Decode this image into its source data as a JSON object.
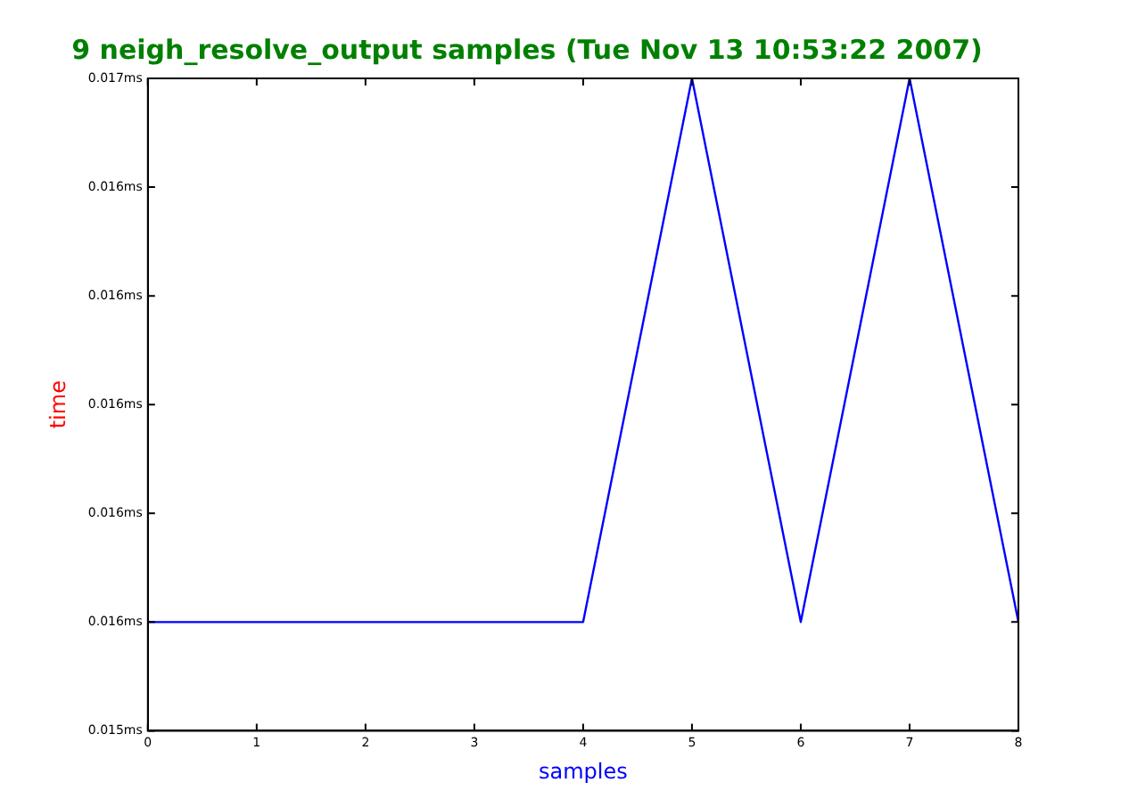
{
  "chart_data": {
    "type": "line",
    "title": "9 neigh_resolve_output samples (Tue Nov 13 10:53:22 2007)",
    "xlabel": "samples",
    "ylabel": "time",
    "x": [
      0,
      1,
      2,
      3,
      4,
      5,
      6,
      7,
      8
    ],
    "series": [
      {
        "color": "#0000ff",
        "values": [
          0.0156,
          0.0156,
          0.0156,
          0.0156,
          0.0156,
          0.0166,
          0.0156,
          0.0166,
          0.0156
        ]
      }
    ],
    "xlim": [
      0,
      8
    ],
    "xticks": [
      0,
      1,
      2,
      3,
      4,
      5,
      6,
      7,
      8
    ],
    "ylim": [
      0.0154,
      0.0166
    ],
    "yticks": [
      {
        "value": 0.0154,
        "label": "0.015ms"
      },
      {
        "value": 0.0156,
        "label": "0.016ms"
      },
      {
        "value": 0.0158,
        "label": "0.016ms"
      },
      {
        "value": 0.016,
        "label": "0.016ms"
      },
      {
        "value": 0.0162,
        "label": "0.016ms"
      },
      {
        "value": 0.0164,
        "label": "0.016ms"
      },
      {
        "value": 0.0166,
        "label": "0.017ms"
      }
    ],
    "grid": false,
    "legend": false,
    "marker": "none",
    "line_style": "solid"
  }
}
